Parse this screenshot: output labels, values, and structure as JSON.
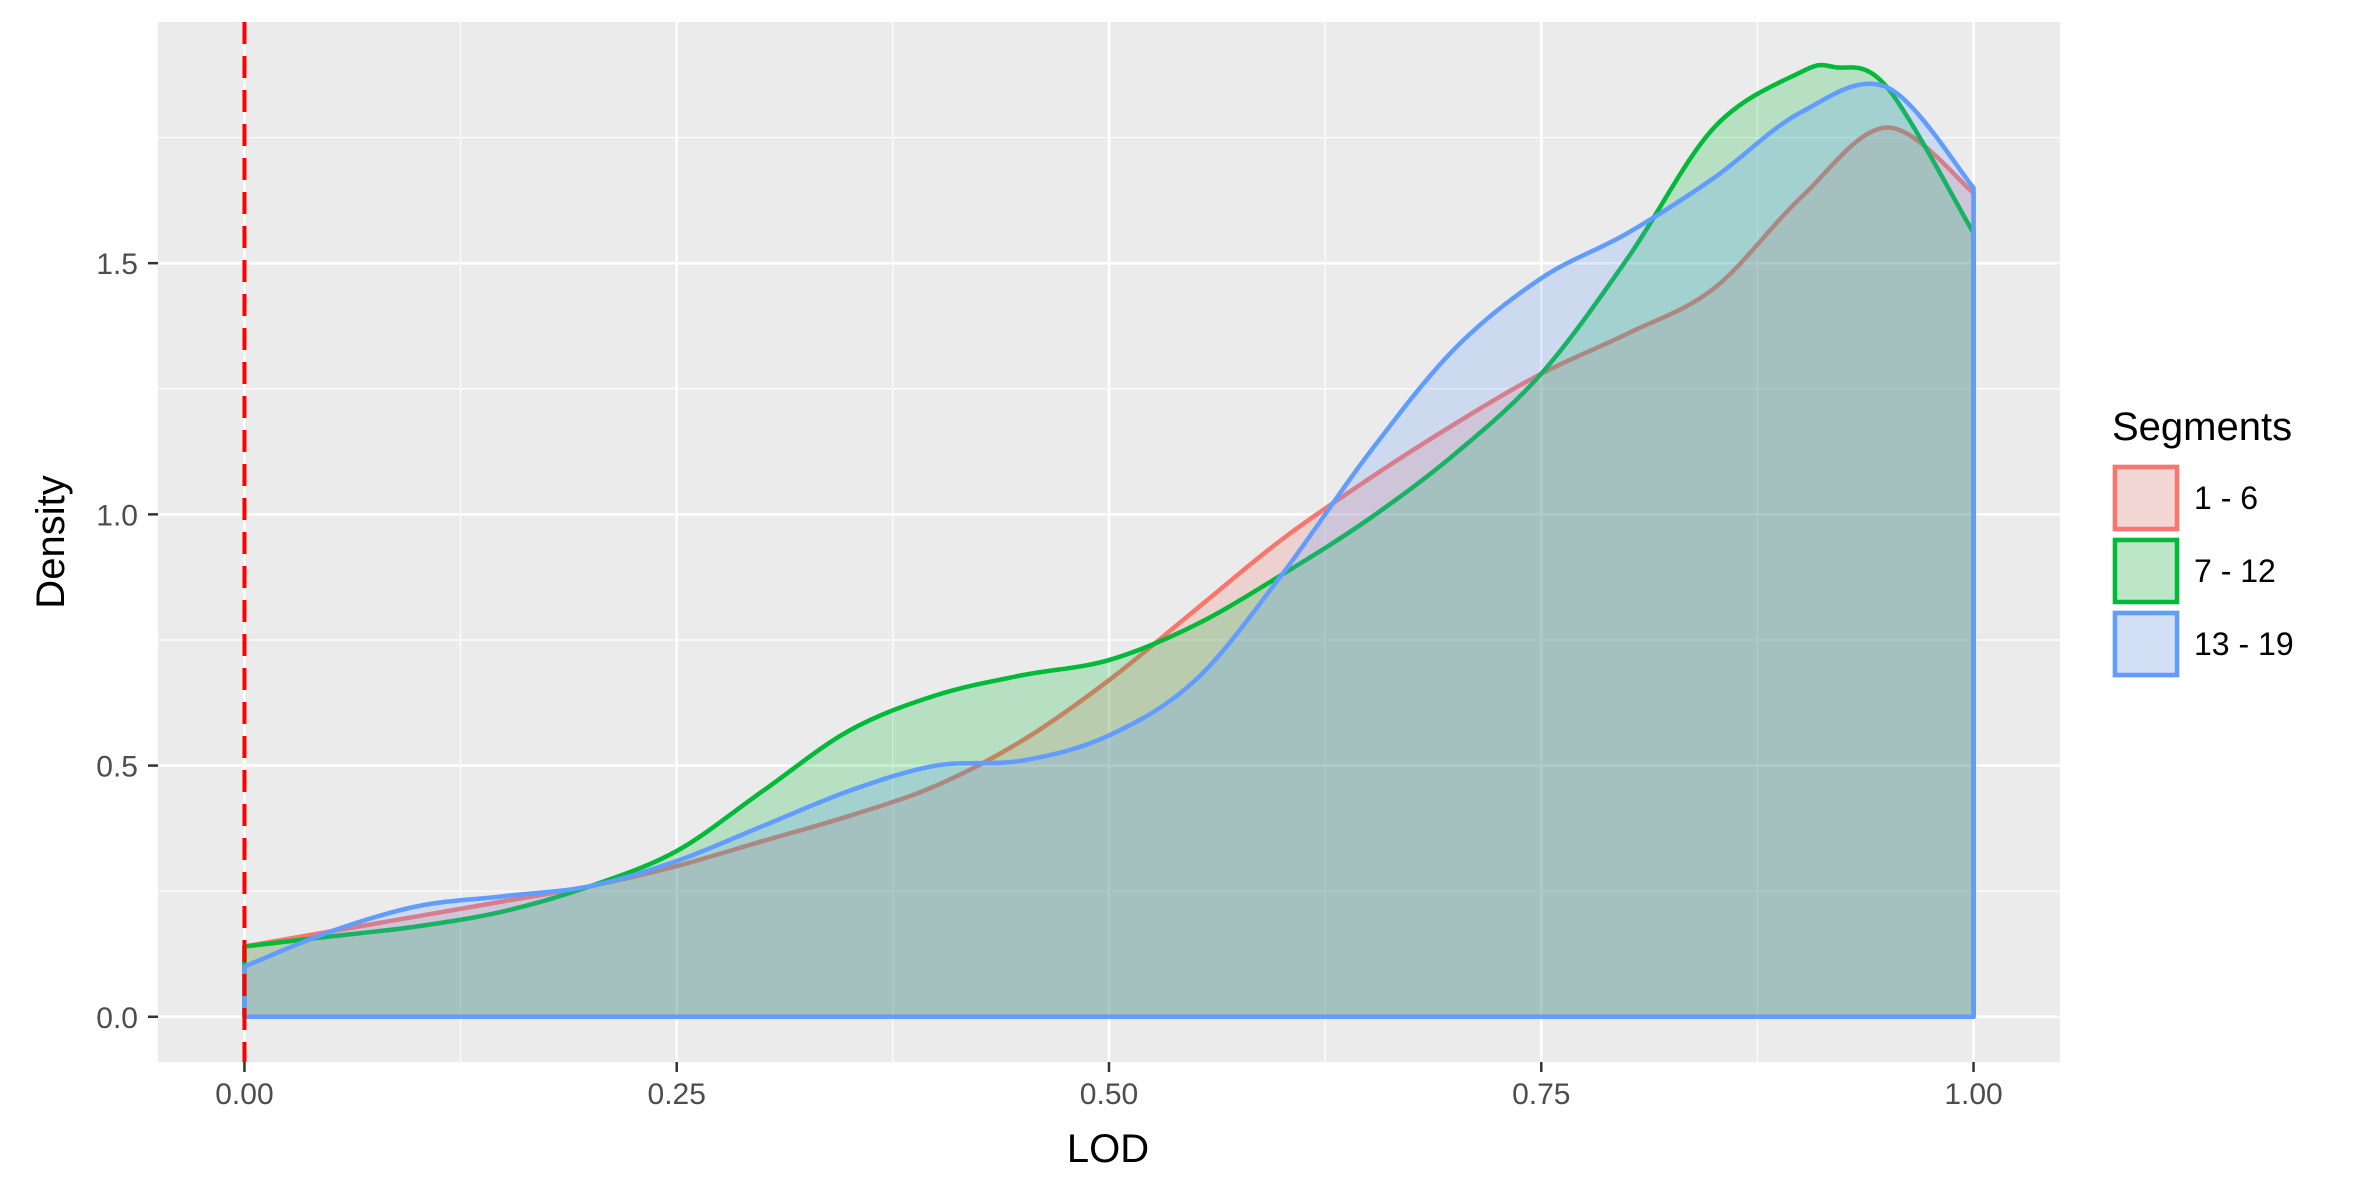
{
  "chart_data": {
    "type": "area",
    "subtype": "density",
    "xlabel": "LOD",
    "ylabel": "Density",
    "xlim": [
      -0.05,
      1.05
    ],
    "ylim": [
      -0.09,
      1.98
    ],
    "x_ticks": [
      0,
      0.25,
      0.5,
      0.75,
      1
    ],
    "x_tick_labels": [
      "0.00",
      "0.25",
      "0.50",
      "0.75",
      "1.00"
    ],
    "y_ticks": [
      0,
      0.5,
      1,
      1.5
    ],
    "y_tick_labels": [
      "0.0",
      "0.5",
      "1.0",
      "1.5"
    ],
    "grid": true,
    "background": "#EBEBEB",
    "vline": {
      "x": 0,
      "color": "#FF0000",
      "style": "dashed"
    },
    "legend": {
      "title": "Segments",
      "position": "right",
      "entries": [
        "1 - 6",
        "7 - 12",
        "13 - 19"
      ]
    },
    "series": [
      {
        "name": "1 - 6",
        "color": "#F8766D",
        "fill": "#F8766D",
        "x": [
          0,
          0.05,
          0.1,
          0.15,
          0.2,
          0.25,
          0.3,
          0.35,
          0.4,
          0.45,
          0.5,
          0.55,
          0.6,
          0.65,
          0.7,
          0.75,
          0.8,
          0.85,
          0.9,
          0.95,
          1.0
        ],
        "y": [
          0.14,
          0.17,
          0.2,
          0.23,
          0.26,
          0.3,
          0.35,
          0.4,
          0.46,
          0.55,
          0.67,
          0.81,
          0.95,
          1.07,
          1.18,
          1.28,
          1.36,
          1.45,
          1.63,
          1.77,
          1.64
        ]
      },
      {
        "name": "7 - 12",
        "color": "#00BA38",
        "fill": "#00BA38",
        "x": [
          0,
          0.05,
          0.1,
          0.15,
          0.2,
          0.25,
          0.3,
          0.35,
          0.4,
          0.45,
          0.5,
          0.55,
          0.6,
          0.65,
          0.7,
          0.75,
          0.8,
          0.85,
          0.9,
          0.92,
          0.95,
          1.0
        ],
        "y": [
          0.14,
          0.16,
          0.18,
          0.21,
          0.26,
          0.33,
          0.45,
          0.57,
          0.64,
          0.68,
          0.71,
          0.78,
          0.88,
          0.99,
          1.12,
          1.28,
          1.51,
          1.77,
          1.88,
          1.89,
          1.85,
          1.56
        ]
      },
      {
        "name": "13 - 19",
        "color": "#619CFF",
        "fill": "#619CFF",
        "x": [
          0,
          0.05,
          0.1,
          0.15,
          0.2,
          0.25,
          0.3,
          0.35,
          0.4,
          0.45,
          0.5,
          0.55,
          0.6,
          0.65,
          0.7,
          0.75,
          0.8,
          0.85,
          0.9,
          0.95,
          1.0
        ],
        "y": [
          0.1,
          0.17,
          0.22,
          0.24,
          0.26,
          0.31,
          0.38,
          0.45,
          0.5,
          0.51,
          0.56,
          0.67,
          0.88,
          1.12,
          1.33,
          1.47,
          1.56,
          1.67,
          1.8,
          1.85,
          1.65
        ]
      }
    ]
  }
}
